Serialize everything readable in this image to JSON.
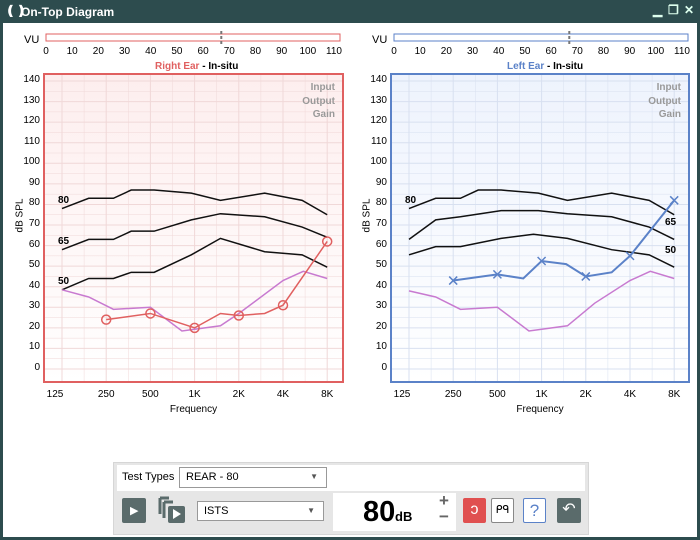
{
  "window": {
    "title": "On-Top Diagram",
    "icon": "brackets-logo-icon",
    "controls": [
      "minimize-icon",
      "restore-icon",
      "close-icon"
    ]
  },
  "colors": {
    "right": "#e06060",
    "left": "#5b82c8",
    "threshold": "#c87ad0",
    "curve": "#111111",
    "titlebar": "#2d4c4e"
  },
  "vu": {
    "label": "VU",
    "ticks": [
      "0",
      "10",
      "20",
      "30",
      "40",
      "50",
      "60",
      "70",
      "80",
      "90",
      "100",
      "110"
    ],
    "right_marker": 67,
    "left_marker": 67
  },
  "right": {
    "ear": "Right Ear",
    "mode": " - In-situ"
  },
  "left": {
    "ear": "Left Ear",
    "mode": " - In-situ"
  },
  "chart_data": [
    {
      "type": "line",
      "title": "Right Ear - In-situ",
      "xlabel": "Frequency",
      "ylabel": "dB SPL",
      "xscale": "log",
      "ylim": [
        0,
        140
      ],
      "grid": true,
      "yticks": [
        "140",
        "130",
        "120",
        "110",
        "100",
        "90",
        "80",
        "70",
        "60",
        "50",
        "40",
        "30",
        "20",
        "10",
        "0"
      ],
      "xticks": [
        {
          "f": 125,
          "label": "125"
        },
        {
          "f": 250,
          "label": "250"
        },
        {
          "f": 500,
          "label": "500"
        },
        {
          "f": 1000,
          "label": "1K"
        },
        {
          "f": 2000,
          "label": "2K"
        },
        {
          "f": 4000,
          "label": "4K"
        },
        {
          "f": 8000,
          "label": "8K"
        }
      ],
      "legend": [
        "Input",
        "Output",
        "Gain"
      ],
      "legend_placement": "top-right",
      "series": [
        {
          "name": "80",
          "color": "#111111",
          "x": [
            125,
            190,
            280,
            370,
            530,
            950,
            1500,
            3000,
            5400,
            8000
          ],
          "y": [
            78,
            83,
            83,
            87,
            87,
            85.5,
            82,
            85.5,
            82,
            75
          ]
        },
        {
          "name": "65",
          "color": "#111111",
          "x": [
            125,
            190,
            280,
            370,
            530,
            950,
            1500,
            3000,
            5400,
            8000
          ],
          "y": [
            58,
            63,
            63,
            67,
            67,
            72.5,
            75.5,
            74,
            69,
            64
          ]
        },
        {
          "name": "50",
          "color": "#111111",
          "x": [
            125,
            190,
            280,
            370,
            530,
            950,
            1500,
            3000,
            5400,
            8000
          ],
          "y": [
            38.5,
            44,
            44,
            47,
            47,
            55.5,
            63.5,
            57,
            55.5,
            49.5
          ]
        },
        {
          "color": "#c87ad0",
          "x": [
            125,
            190,
            280,
            500,
            820,
            1500,
            2000,
            4000,
            5500,
            8000
          ],
          "y": [
            38.5,
            35,
            29,
            30,
            18.5,
            21,
            27,
            43,
            47.5,
            44
          ]
        },
        {
          "color": "#e06060",
          "marker": "circle",
          "x": [
            250,
            500,
            1000,
            1500,
            2000,
            3000,
            4000,
            8000
          ],
          "y": [
            24,
            27,
            20,
            27,
            26,
            27,
            31,
            62
          ],
          "markers_at": [
            250,
            500,
            1000,
            2000,
            4000,
            8000
          ]
        }
      ]
    },
    {
      "type": "line",
      "title": "Left Ear - In-situ",
      "xlabel": "Frequency",
      "ylabel": "dB SPL",
      "xscale": "log",
      "ylim": [
        0,
        140
      ],
      "grid": true,
      "yticks": [
        "140",
        "130",
        "120",
        "110",
        "100",
        "90",
        "80",
        "70",
        "60",
        "50",
        "40",
        "30",
        "20",
        "10",
        "0"
      ],
      "xticks": [
        {
          "f": 125,
          "label": "125"
        },
        {
          "f": 250,
          "label": "250"
        },
        {
          "f": 500,
          "label": "500"
        },
        {
          "f": 1000,
          "label": "1K"
        },
        {
          "f": 2000,
          "label": "2K"
        },
        {
          "f": 4000,
          "label": "4K"
        },
        {
          "f": 8000,
          "label": "8K"
        }
      ],
      "legend": [
        "Input",
        "Output",
        "Gain"
      ],
      "legend_placement": "top-right",
      "series": [
        {
          "name": "80",
          "color": "#111111",
          "x": [
            125,
            190,
            280,
            370,
            530,
            950,
            1500,
            3000,
            5400,
            8000
          ],
          "y": [
            78,
            83,
            83,
            87,
            87,
            85.5,
            82,
            85.5,
            82,
            75
          ]
        },
        {
          "name": "65",
          "color": "#111111",
          "x": [
            125,
            190,
            280,
            530,
            950,
            1500,
            3000,
            5400,
            8000
          ],
          "y": [
            63,
            72.5,
            74,
            77,
            77,
            75.5,
            74,
            69,
            63
          ]
        },
        {
          "name": "50",
          "color": "#111111",
          "x": [
            125,
            190,
            280,
            530,
            880,
            1500,
            3000,
            5400,
            8000
          ],
          "y": [
            55.5,
            59.5,
            59.5,
            63.5,
            65.5,
            63.5,
            58,
            55.5,
            49.5
          ]
        },
        {
          "color": "#c87ad0",
          "x": [
            125,
            190,
            280,
            500,
            820,
            1500,
            2300,
            4000,
            5500,
            8000
          ],
          "y": [
            38,
            35,
            29,
            30,
            18.5,
            21,
            32,
            43,
            47.5,
            44
          ]
        },
        {
          "color": "#5b82c8",
          "marker": "x",
          "x": [
            250,
            500,
            750,
            1000,
            1470,
            2000,
            3000,
            4000,
            8000
          ],
          "y": [
            43,
            46,
            44,
            52.5,
            51,
            45,
            47,
            55,
            82
          ],
          "markers_at": [
            250,
            500,
            1000,
            2000,
            4000,
            8000
          ]
        }
      ]
    }
  ],
  "controls": {
    "test_types_label": "Test Types",
    "test_type": "REAR - 80",
    "signal": "ISTS",
    "level": "80",
    "level_unit": "dB",
    "plus": "+",
    "minus": "−",
    "icons": [
      "play-icon",
      "play-sequence-icon",
      "right-ear-icon",
      "both-ears-icon",
      "left-ear-icon",
      "undo-ear-icon"
    ]
  }
}
